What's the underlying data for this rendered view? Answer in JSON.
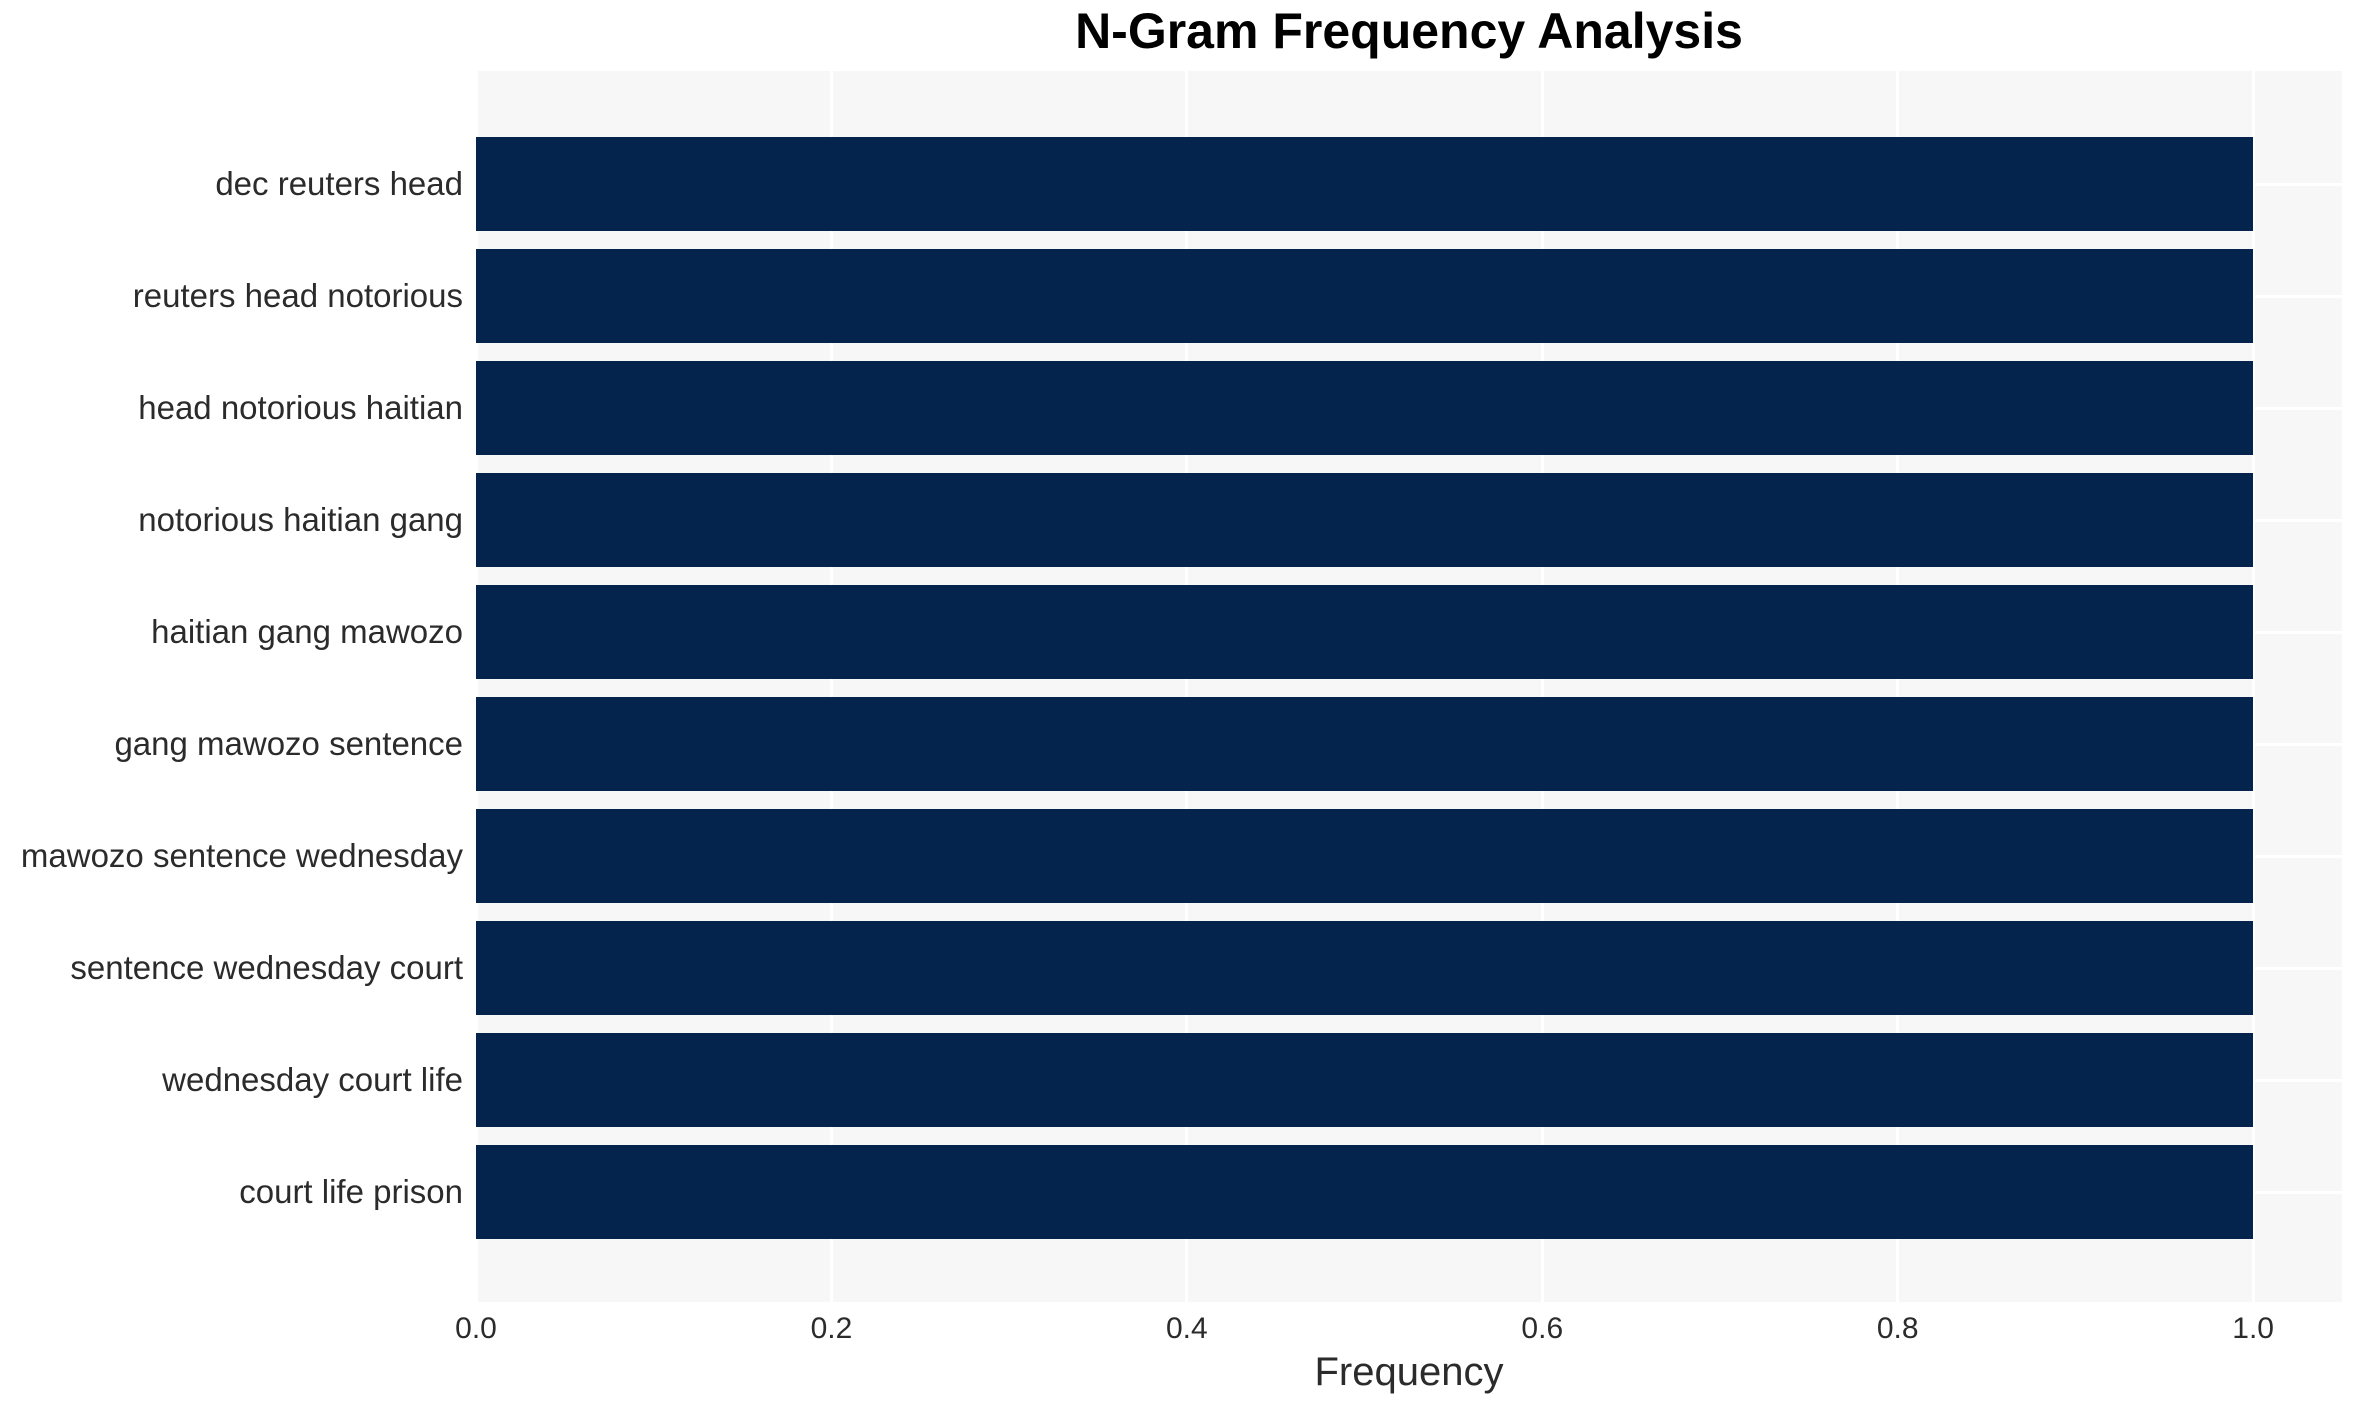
{
  "chart_data": {
    "type": "bar",
    "orientation": "horizontal",
    "title": "N-Gram Frequency Analysis",
    "xlabel": "Frequency",
    "ylabel": "",
    "categories": [
      "dec reuters head",
      "reuters head notorious",
      "head notorious haitian",
      "notorious haitian gang",
      "haitian gang mawozo",
      "gang mawozo sentence",
      "mawozo sentence wednesday",
      "sentence wednesday court",
      "wednesday court life",
      "court life prison"
    ],
    "values": [
      1.0,
      1.0,
      1.0,
      1.0,
      1.0,
      1.0,
      1.0,
      1.0,
      1.0,
      1.0
    ],
    "xlim": [
      0,
      1.05
    ],
    "x_tick_values": [
      0.0,
      0.2,
      0.4,
      0.6,
      0.8,
      1.0
    ],
    "x_tick_labels": [
      "0.0",
      "0.2",
      "0.4",
      "0.6",
      "0.8",
      "1.0"
    ],
    "grid": true,
    "legend": false,
    "colors": {
      "bar": "#04234d",
      "plot_bg": "#f7f7f7",
      "grid": "#ffffff",
      "tick_text": "#2b2b2b",
      "title_text": "#000000",
      "page_bg": "#ffffff"
    }
  }
}
